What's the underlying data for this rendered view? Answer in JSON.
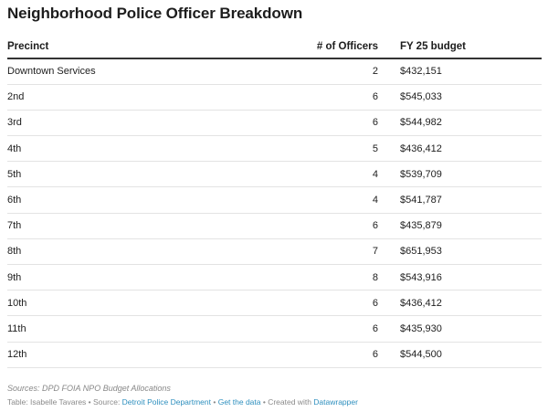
{
  "title": "Neighborhood Police Officer Breakdown",
  "headers": {
    "precinct": "Precinct",
    "officers": "# of Officers",
    "budget": "FY 25 budget"
  },
  "chart_data": {
    "type": "table",
    "title": "Neighborhood Police Officer Breakdown",
    "columns": [
      "Precinct",
      "# of Officers",
      "FY 25 budget"
    ],
    "rows": [
      {
        "precinct": "Downtown Services",
        "officers": "2",
        "budget": "$432,151"
      },
      {
        "precinct": "2nd",
        "officers": "6",
        "budget": "$545,033"
      },
      {
        "precinct": "3rd",
        "officers": "6",
        "budget": "$544,982"
      },
      {
        "precinct": "4th",
        "officers": "5",
        "budget": "$436,412"
      },
      {
        "precinct": "5th",
        "officers": "4",
        "budget": "$539,709"
      },
      {
        "precinct": "6th",
        "officers": "4",
        "budget": "$541,787"
      },
      {
        "precinct": "7th",
        "officers": "6",
        "budget": "$435,879"
      },
      {
        "precinct": "8th",
        "officers": "7",
        "budget": "$651,953"
      },
      {
        "precinct": "9th",
        "officers": "8",
        "budget": "$543,916"
      },
      {
        "precinct": "10th",
        "officers": "6",
        "budget": "$436,412"
      },
      {
        "precinct": "11th",
        "officers": "6",
        "budget": "$435,930"
      },
      {
        "precinct": "12th",
        "officers": "6",
        "budget": "$544,500"
      }
    ]
  },
  "notes": "Sources: DPD FOIA NPO Budget Allocations",
  "footer": {
    "table_prefix": "Table: Isabelle Tavares • Source: ",
    "source_link": "Detroit Police Department",
    "sep1": " • ",
    "data_link": "Get the data",
    "sep2": " • Created with ",
    "tool_link": "Datawrapper"
  },
  "colors": {
    "text": "#1d1d1d",
    "header_rule": "#333333",
    "row_rule": "#e3e3e3",
    "muted": "#888888",
    "link": "#2d8fbe"
  }
}
